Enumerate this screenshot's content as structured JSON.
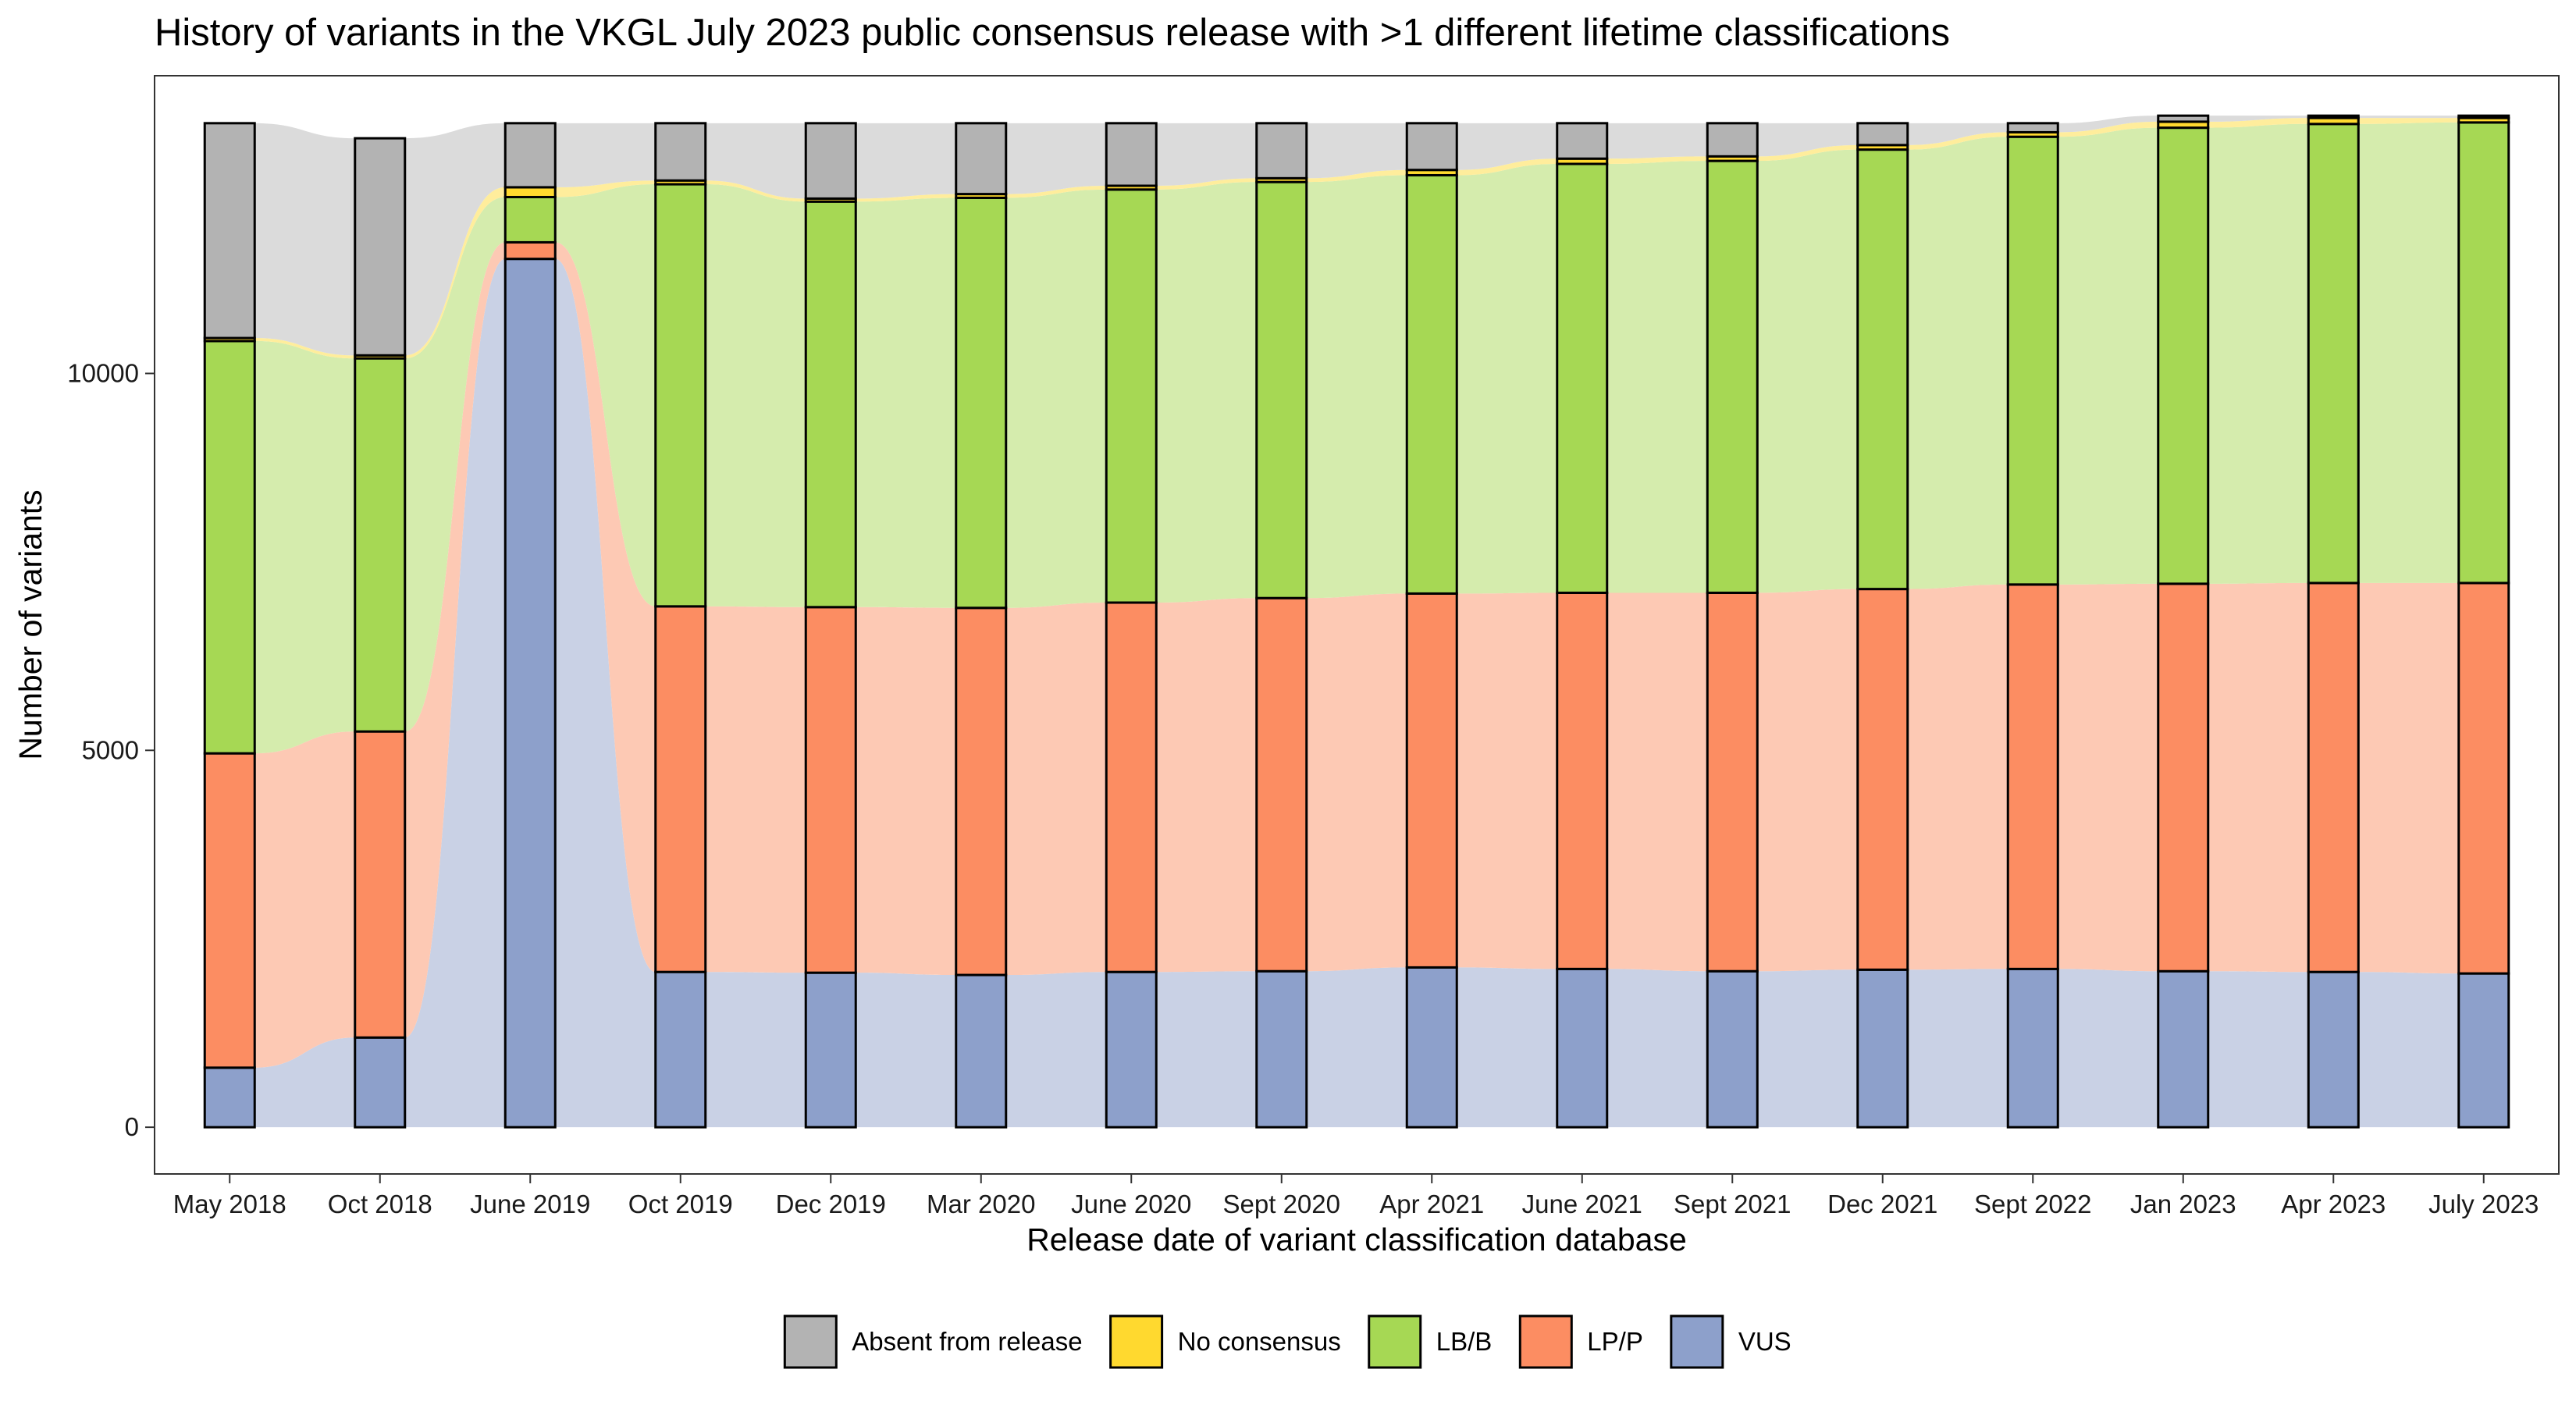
{
  "chart_data": {
    "type": "alluvial-stacked-bar",
    "title": "History of variants in the VKGL July 2023 public consensus release with >1 different lifetime classifications",
    "xlabel": "Release date of variant classification database",
    "ylabel": "Number of variants",
    "ylim": [
      -620,
      13950
    ],
    "yticks": [
      0,
      5000,
      10000
    ],
    "grid": false,
    "legend_position": "bottom",
    "categories": [
      "May 2018",
      "Oct 2018",
      "June 2019",
      "Oct 2019",
      "Dec 2019",
      "Mar 2020",
      "June 2020",
      "Sept 2020",
      "Apr 2021",
      "June 2021",
      "Sept 2021",
      "Dec 2021",
      "Sept 2022",
      "Jan 2023",
      "Apr 2023",
      "July 2023"
    ],
    "stack_order_bottom_to_top": [
      "VUS",
      "LP/P",
      "LB/B",
      "No consensus",
      "Absent from release"
    ],
    "series": [
      {
        "name": "VUS",
        "color": "#8DA0CB",
        "flow_color": "#C6CFE4",
        "values": [
          790,
          1190,
          11520,
          2060,
          2050,
          2020,
          2060,
          2070,
          2120,
          2100,
          2070,
          2090,
          2100,
          2070,
          2060,
          2040
        ]
      },
      {
        "name": "LP/P",
        "color": "#FC8D62",
        "flow_color": "#FDC6B0",
        "values": [
          4170,
          4060,
          220,
          4850,
          4850,
          4870,
          4900,
          4950,
          4960,
          4990,
          5020,
          5050,
          5100,
          5140,
          5160,
          5180
        ]
      },
      {
        "name": "LB/B",
        "color": "#A6D854",
        "flow_color": "#D3EBA9",
        "values": [
          5470,
          4950,
          600,
          5600,
          5380,
          5440,
          5480,
          5520,
          5550,
          5690,
          5730,
          5830,
          5940,
          6050,
          6090,
          6110
        ]
      },
      {
        "name": "No consensus",
        "color": "#FFD92F",
        "flow_color": "#FFEC97",
        "values": [
          40,
          40,
          130,
          50,
          40,
          50,
          50,
          50,
          70,
          70,
          60,
          60,
          60,
          80,
          80,
          60
        ]
      },
      {
        "name": "Absent from release",
        "color": "#B3B3B3",
        "flow_color": "#D9D9D9",
        "values": [
          2850,
          2880,
          850,
          760,
          1000,
          940,
          830,
          730,
          620,
          470,
          440,
          290,
          120,
          80,
          30,
          30
        ]
      }
    ]
  },
  "legend": {
    "items": [
      {
        "label": "Absent from release",
        "color": "#B3B3B3"
      },
      {
        "label": "No consensus",
        "color": "#FFD92F"
      },
      {
        "label": "LB/B",
        "color": "#A6D854"
      },
      {
        "label": "LP/P",
        "color": "#FC8D62"
      },
      {
        "label": "VUS",
        "color": "#8DA0CB"
      }
    ]
  }
}
